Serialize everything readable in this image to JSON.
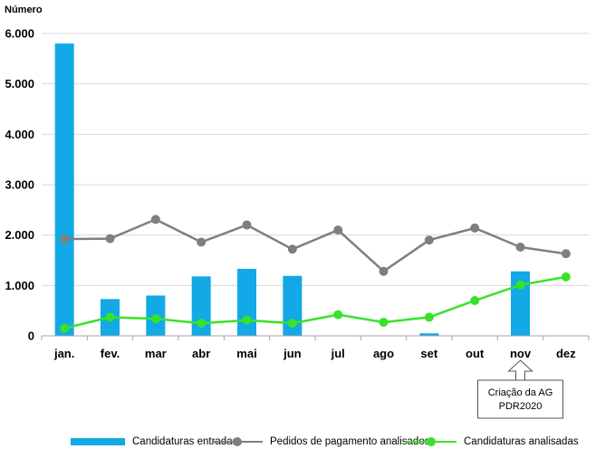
{
  "chart_data": {
    "type": "bar",
    "title": "",
    "ylabel": "Número",
    "xlabel": "",
    "categories": [
      "jan.",
      "fev.",
      "mar",
      "abr",
      "mai",
      "jun",
      "jul",
      "ago",
      "set",
      "out",
      "nov",
      "dez"
    ],
    "ylim": [
      0,
      6000
    ],
    "yticks": [
      0,
      1000,
      2000,
      3000,
      4000,
      5000,
      6000
    ],
    "ytick_labels": [
      "0",
      "1.000",
      "2.000",
      "3.000",
      "4.000",
      "5.000",
      "6.000"
    ],
    "grid": true,
    "series": [
      {
        "name": "Candidaturas entradas",
        "type": "bar",
        "color": "#12a9e6",
        "values": [
          5800,
          730,
          800,
          1180,
          1330,
          1190,
          0,
          10,
          50,
          0,
          1280,
          0
        ]
      },
      {
        "name": "Pedidos de pagamento analisados",
        "type": "line",
        "color": "#7f7f7f",
        "values": [
          1920,
          1930,
          2310,
          1860,
          2200,
          1720,
          2100,
          1280,
          1900,
          2140,
          1760,
          1630
        ]
      },
      {
        "name": "Candidaturas analisadas",
        "type": "line",
        "color": "#39e22a",
        "values": [
          150,
          370,
          340,
          250,
          310,
          250,
          420,
          270,
          370,
          700,
          1010,
          1170
        ]
      }
    ],
    "annotation": {
      "text_lines": [
        "Criação da AG",
        "PDR2020"
      ],
      "category": "nov"
    },
    "legend_position": "bottom"
  }
}
